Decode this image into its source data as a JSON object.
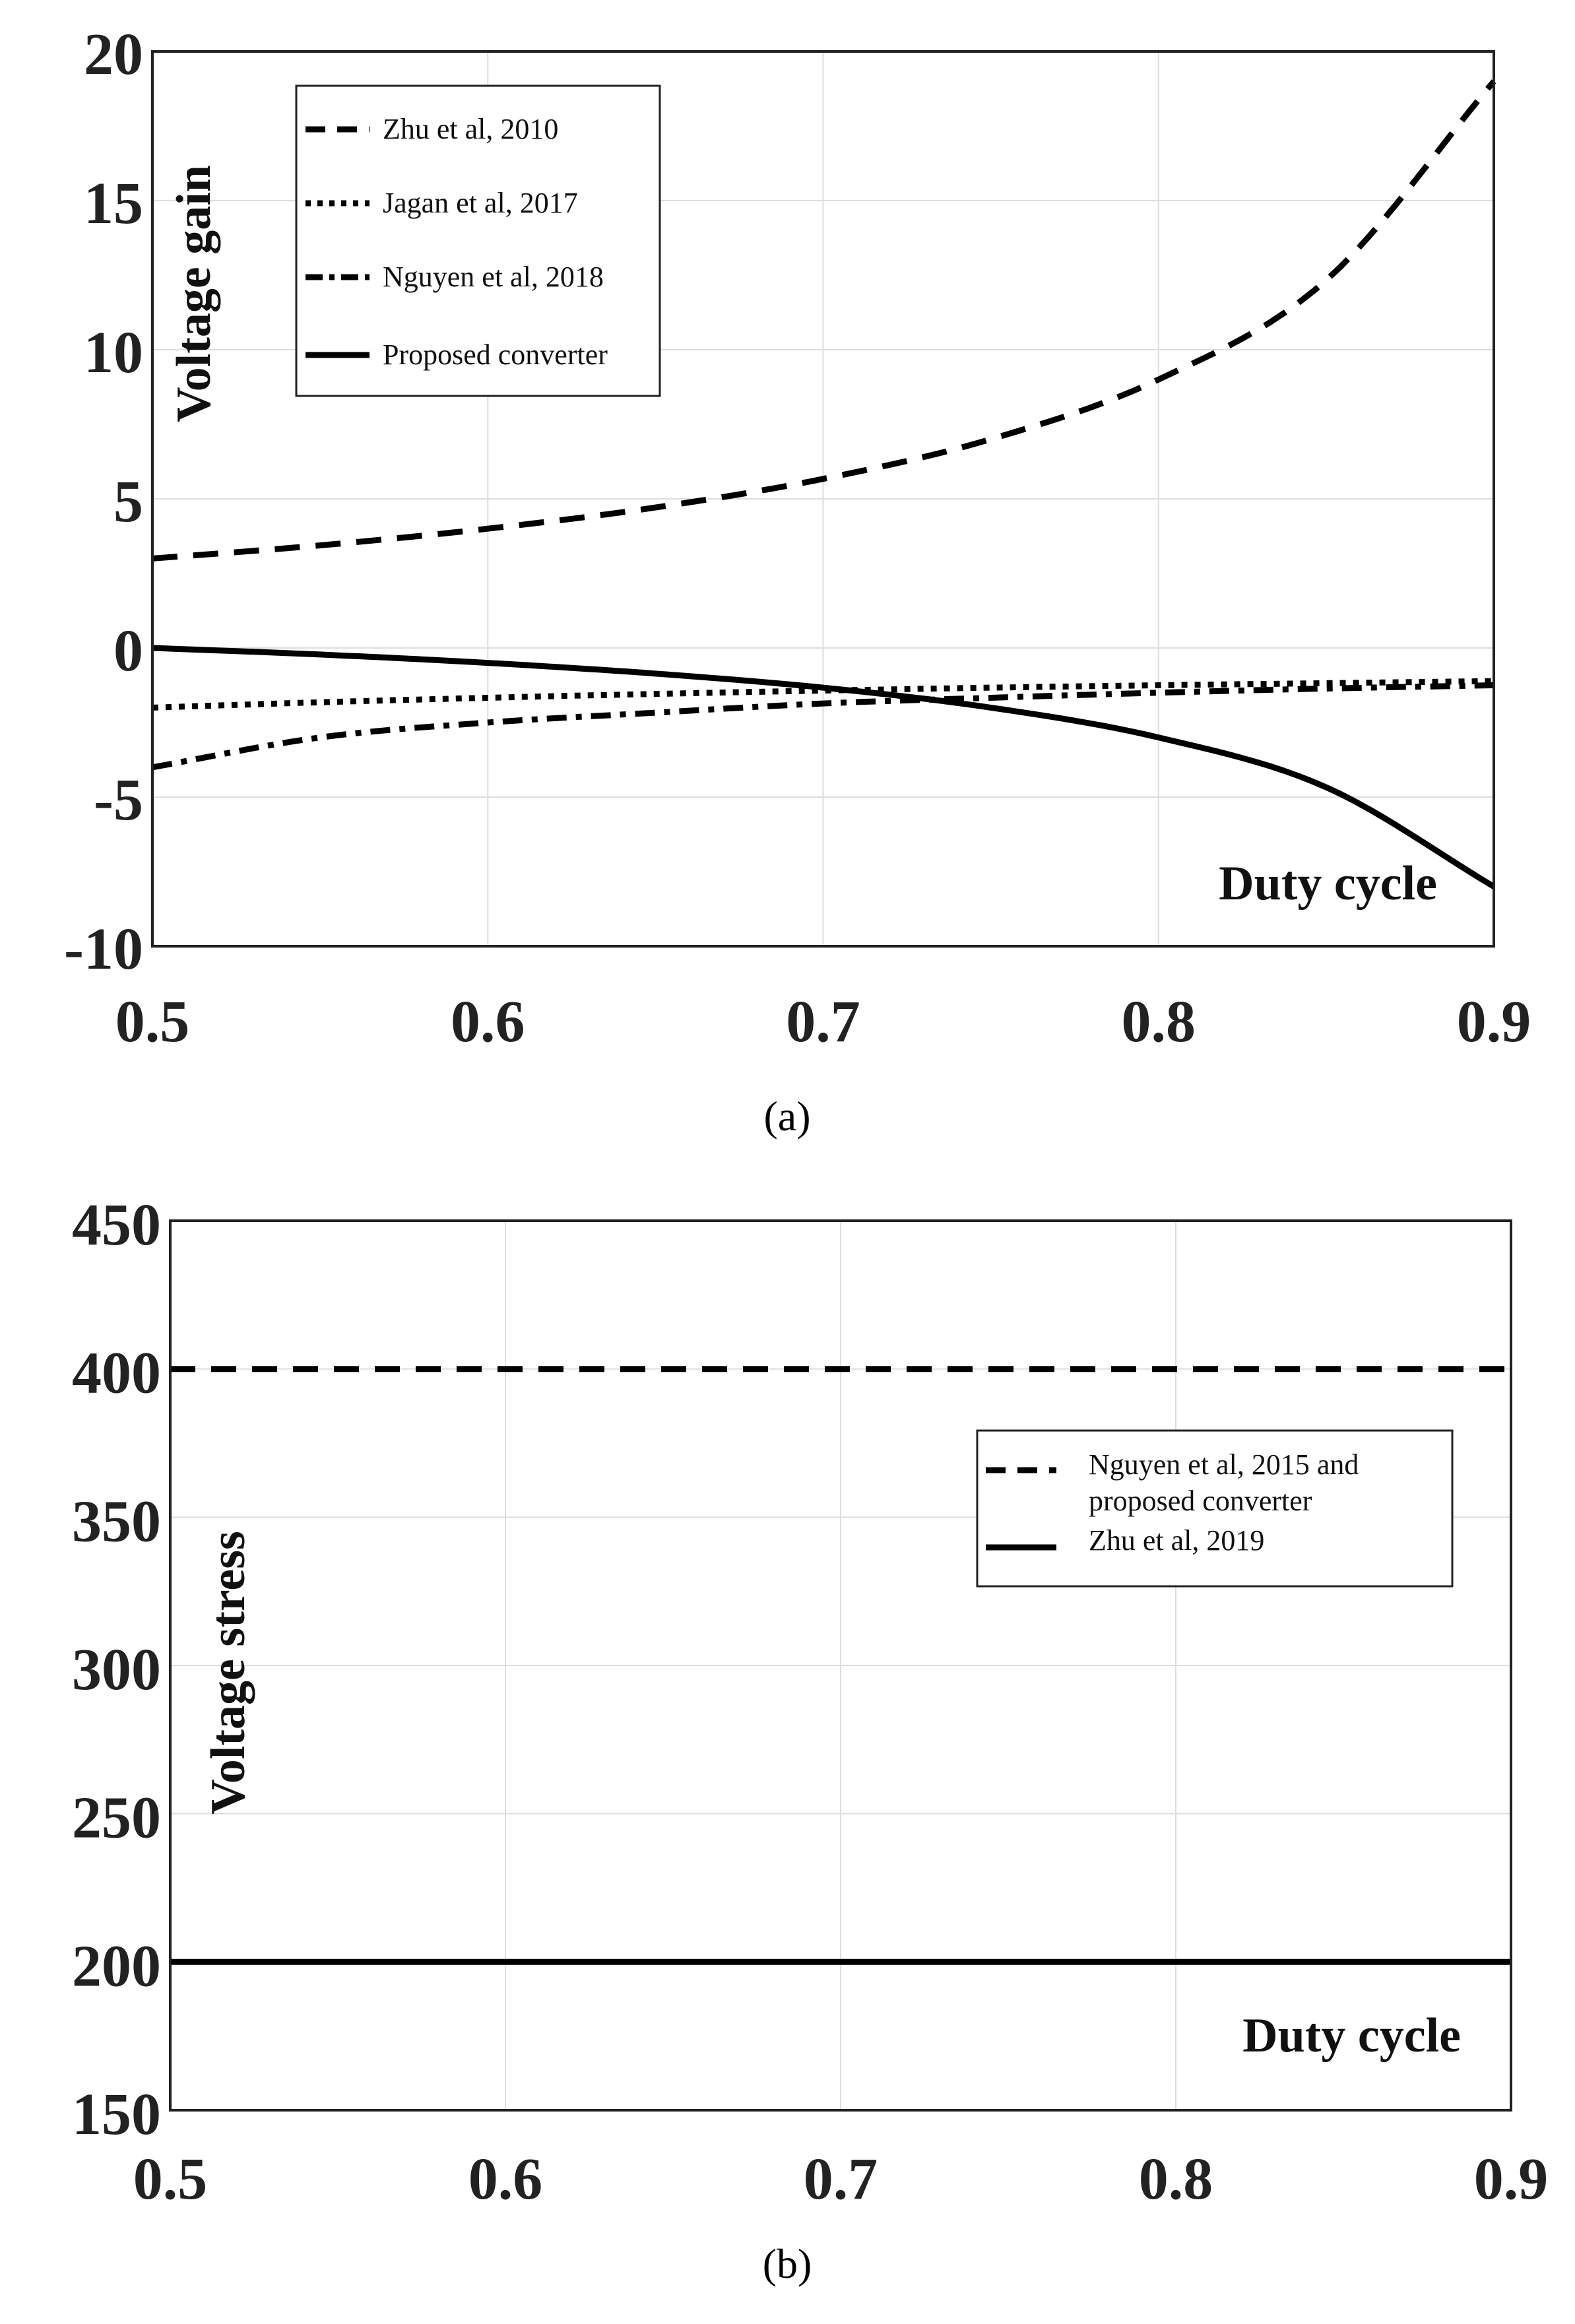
{
  "chart_data": [
    {
      "type": "line",
      "caption": "(a)",
      "xlabel": "Duty cycle",
      "ylabel": "Voltage gain",
      "xlim": [
        0.5,
        0.9
      ],
      "ylim": [
        -10,
        20
      ],
      "xticks": [
        0.5,
        0.6,
        0.7,
        0.8,
        0.9
      ],
      "xtick_labels": [
        "0.5",
        "0.6",
        "0.7",
        "0.8",
        "0.9"
      ],
      "yticks": [
        -10,
        -5,
        0,
        5,
        10,
        15,
        20
      ],
      "ytick_labels": [
        "-10",
        "-5",
        "0",
        "5",
        "10",
        "15",
        "20"
      ],
      "grid": true,
      "legend": "top-left",
      "x": [
        0.5,
        0.55,
        0.6,
        0.65,
        0.7,
        0.75,
        0.8,
        0.85,
        0.9
      ],
      "series": [
        {
          "name": "Zhu et al, 2010",
          "style": "dashed",
          "values": [
            3.0,
            3.44,
            4.0,
            4.71,
            5.67,
            7.0,
            9.0,
            12.33,
            19.0
          ]
        },
        {
          "name": "Jagan et al, 2017",
          "style": "dotted",
          "values": [
            -2.0,
            -1.82,
            -1.67,
            -1.54,
            -1.43,
            -1.33,
            -1.25,
            -1.18,
            -1.11
          ]
        },
        {
          "name": "Nguyen et al, 2018",
          "style": "dash-dot",
          "values": [
            -4.0,
            -3.0,
            -2.5,
            -2.17,
            -1.86,
            -1.67,
            -1.5,
            -1.36,
            -1.25
          ]
        },
        {
          "name": "Proposed converter",
          "style": "solid",
          "values": [
            0.0,
            -0.22,
            -0.5,
            -0.86,
            -1.33,
            -2.0,
            -3.0,
            -4.67,
            -8.0
          ]
        }
      ]
    },
    {
      "type": "line",
      "caption": "(b)",
      "xlabel": "Duty cycle",
      "ylabel": "Voltage stress",
      "xlim": [
        0.5,
        0.9
      ],
      "ylim": [
        150,
        450
      ],
      "xticks": [
        0.5,
        0.6,
        0.7,
        0.8,
        0.9
      ],
      "xtick_labels": [
        "0.5",
        "0.6",
        "0.7",
        "0.8",
        "0.9"
      ],
      "yticks": [
        150,
        200,
        250,
        300,
        350,
        400,
        450
      ],
      "ytick_labels": [
        "150",
        "200",
        "250",
        "300",
        "350",
        "400",
        "450"
      ],
      "grid": true,
      "legend": "middle-right",
      "x": [
        0.5,
        0.9
      ],
      "series": [
        {
          "name": "Nguyen et al, 2015 and proposed converter",
          "name_lines": [
            "Nguyen et al, 2015 and",
            "proposed converter"
          ],
          "style": "dashed",
          "values": [
            400,
            400
          ]
        },
        {
          "name": "Zhu et al, 2019",
          "style": "solid",
          "values": [
            200,
            200
          ]
        }
      ]
    }
  ]
}
